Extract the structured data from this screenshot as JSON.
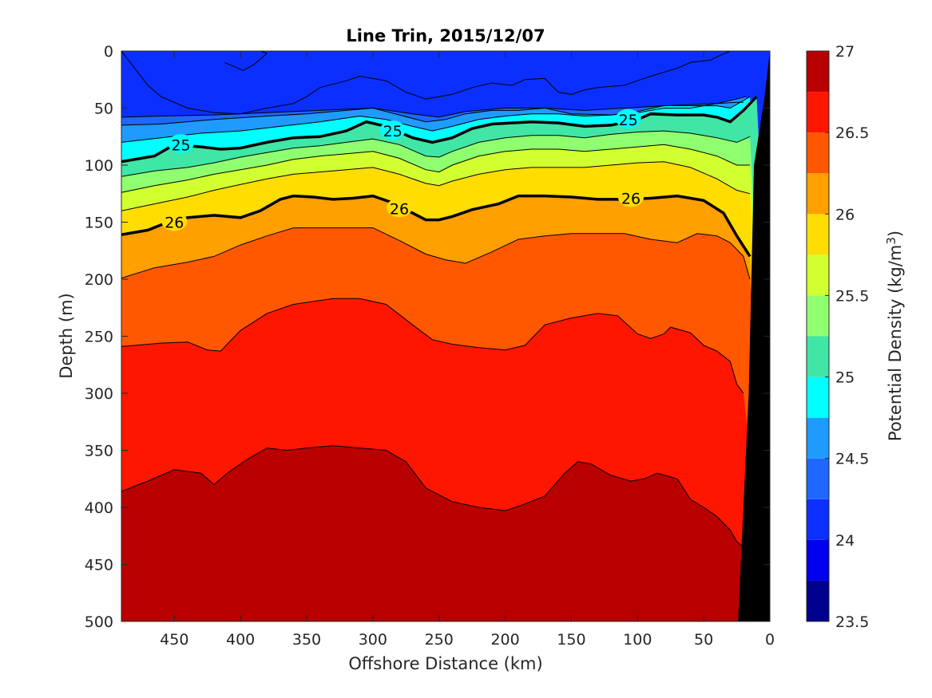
{
  "chart_data": {
    "type": "contour",
    "title": "Line Trin, 2015/12/07",
    "xlabel": "Offshore Distance (km)",
    "ylabel": "Depth (m)",
    "colorbar_label": "Potential Density (kg/m",
    "colorbar_label_sup": "3",
    "colorbar_label_end": ")",
    "xlim": [
      490,
      0
    ],
    "ylim": [
      500,
      0
    ],
    "x_ticks": [
      450,
      400,
      350,
      300,
      250,
      200,
      150,
      100,
      50,
      0
    ],
    "y_ticks": [
      0,
      50,
      100,
      150,
      200,
      250,
      300,
      350,
      400,
      450,
      500
    ],
    "colorbar_range": [
      23.5,
      27
    ],
    "colorbar_ticks": [
      23.5,
      24,
      24.5,
      25,
      25.5,
      26,
      26.5,
      27
    ],
    "contour_levels": [
      23.5,
      23.75,
      24,
      24.25,
      24.5,
      24.75,
      25,
      25.25,
      25.5,
      25.75,
      26,
      26.25,
      26.5,
      26.75
    ],
    "level_colors": [
      "#00008f",
      "#0000ef",
      "#0b2fff",
      "#1f67ff",
      "#1f9bff",
      "#00ffff",
      "#3fe6a6",
      "#8fff70",
      "#d2ff2f",
      "#ffdd00",
      "#ff9f00",
      "#ff5800",
      "#ff1600",
      "#b90000"
    ],
    "labeled_contours": [
      {
        "level": 25,
        "labels": [
          {
            "x": 445,
            "depth": 82,
            "text": "25"
          },
          {
            "x": 285,
            "depth": 70,
            "text": "25"
          },
          {
            "x": 107,
            "depth": 60,
            "text": "25"
          }
        ]
      },
      {
        "level": 26,
        "labels": [
          {
            "x": 450,
            "depth": 150,
            "text": "26"
          },
          {
            "x": 280,
            "depth": 138,
            "text": "26"
          },
          {
            "x": 105,
            "depth": 129,
            "text": "26"
          }
        ]
      }
    ],
    "isopycnals": [
      {
        "level": 24.25,
        "x": [
          490,
          460,
          420,
          380,
          340,
          300,
          270,
          250,
          230,
          200,
          170,
          140,
          110,
          80,
          60,
          40,
          25,
          20
        ],
        "depth": [
          58,
          57,
          56,
          54,
          52,
          50,
          55,
          58,
          53,
          50,
          50,
          52,
          50,
          48,
          47,
          46,
          45,
          45
        ]
      },
      {
        "level": 24.5,
        "x": [
          490,
          460,
          420,
          380,
          350,
          320,
          300,
          280,
          260,
          245,
          230,
          210,
          190,
          170,
          150,
          120,
          100,
          80,
          60,
          40,
          25,
          18
        ],
        "depth": [
          65,
          64,
          60,
          57,
          55,
          52,
          50,
          56,
          62,
          60,
          55,
          52,
          52,
          50,
          55,
          56,
          54,
          50,
          50,
          46,
          42,
          40
        ]
      },
      {
        "level": 24.75,
        "x": [
          490,
          460,
          430,
          400,
          370,
          340,
          310,
          290,
          270,
          255,
          240,
          220,
          200,
          180,
          160,
          140,
          120,
          100,
          80,
          60,
          40,
          30,
          15
        ],
        "depth": [
          80,
          76,
          72,
          70,
          66,
          62,
          57,
          60,
          66,
          70,
          66,
          60,
          57,
          55,
          55,
          57,
          56,
          53,
          48,
          48,
          48,
          50,
          40
        ]
      },
      {
        "level": 25,
        "x": [
          490,
          465,
          450,
          430,
          415,
          400,
          380,
          360,
          340,
          320,
          305,
          290,
          270,
          255,
          240,
          225,
          210,
          195,
          180,
          160,
          140,
          120,
          100,
          90,
          70,
          50,
          40,
          30,
          20,
          10
        ],
        "depth": [
          97,
          92,
          82,
          84,
          86,
          85,
          80,
          76,
          75,
          70,
          62,
          66,
          76,
          80,
          76,
          68,
          64,
          63,
          62,
          63,
          66,
          65,
          60,
          55,
          56,
          56,
          58,
          62,
          52,
          40
        ]
      },
      {
        "level": 25.25,
        "x": [
          490,
          465,
          440,
          420,
          400,
          380,
          360,
          340,
          320,
          300,
          280,
          260,
          250,
          240,
          220,
          200,
          180,
          160,
          140,
          120,
          100,
          80,
          60,
          40,
          25,
          15
        ],
        "depth": [
          110,
          105,
          102,
          98,
          93,
          89,
          85,
          83,
          80,
          77,
          82,
          92,
          93,
          88,
          80,
          76,
          74,
          74,
          76,
          73,
          71,
          70,
          72,
          76,
          80,
          75
        ]
      },
      {
        "level": 25.5,
        "x": [
          490,
          465,
          440,
          420,
          400,
          380,
          360,
          340,
          320,
          300,
          280,
          260,
          250,
          240,
          220,
          200,
          180,
          160,
          140,
          120,
          100,
          80,
          60,
          40,
          25,
          15
        ],
        "depth": [
          124,
          118,
          113,
          108,
          104,
          100,
          95,
          92,
          90,
          88,
          94,
          104,
          106,
          100,
          92,
          88,
          86,
          86,
          88,
          86,
          84,
          82,
          86,
          92,
          100,
          100
        ]
      },
      {
        "level": 25.75,
        "x": [
          490,
          465,
          440,
          420,
          400,
          380,
          360,
          340,
          320,
          300,
          280,
          260,
          250,
          240,
          220,
          200,
          180,
          160,
          140,
          120,
          100,
          80,
          60,
          40,
          25,
          15
        ],
        "depth": [
          140,
          134,
          128,
          122,
          117,
          112,
          108,
          106,
          104,
          102,
          108,
          116,
          118,
          114,
          108,
          104,
          102,
          102,
          102,
          100,
          98,
          97,
          102,
          112,
          122,
          125
        ]
      },
      {
        "level": 26,
        "x": [
          490,
          470,
          455,
          440,
          420,
          400,
          385,
          370,
          360,
          345,
          330,
          315,
          300,
          285,
          270,
          260,
          250,
          240,
          225,
          205,
          190,
          170,
          150,
          130,
          110,
          90,
          70,
          50,
          35,
          25,
          15
        ],
        "depth": [
          161,
          157,
          150,
          146,
          144,
          146,
          140,
          130,
          127,
          128,
          130,
          129,
          127,
          133,
          142,
          148,
          148,
          145,
          139,
          134,
          127,
          127,
          128,
          130,
          130,
          129,
          127,
          131,
          142,
          162,
          180
        ]
      },
      {
        "level": 26.25,
        "x": [
          490,
          465,
          440,
          420,
          400,
          380,
          360,
          340,
          320,
          300,
          280,
          260,
          245,
          230,
          210,
          190,
          170,
          150,
          130,
          110,
          90,
          70,
          55,
          40,
          30,
          20,
          15
        ],
        "depth": [
          199,
          190,
          185,
          180,
          170,
          162,
          155,
          155,
          155,
          155,
          166,
          178,
          183,
          186,
          176,
          165,
          162,
          160,
          160,
          160,
          165,
          168,
          160,
          162,
          168,
          180,
          200
        ]
      },
      {
        "level": 26.5,
        "x": [
          490,
          460,
          440,
          425,
          415,
          400,
          380,
          360,
          330,
          310,
          290,
          270,
          255,
          240,
          220,
          200,
          185,
          170,
          150,
          130,
          115,
          100,
          90,
          80,
          75,
          60,
          50,
          40,
          30,
          25,
          20
        ],
        "depth": [
          259,
          256,
          255,
          262,
          263,
          245,
          230,
          222,
          217,
          217,
          222,
          240,
          253,
          257,
          260,
          262,
          258,
          240,
          234,
          230,
          232,
          248,
          252,
          248,
          242,
          247,
          258,
          263,
          272,
          292,
          300
        ]
      },
      {
        "level": 26.75,
        "x": [
          490,
          470,
          450,
          430,
          420,
          410,
          395,
          380,
          365,
          350,
          330,
          310,
          290,
          275,
          260,
          240,
          220,
          200,
          185,
          170,
          155,
          145,
          135,
          120,
          105,
          95,
          85,
          70,
          60,
          50,
          40,
          30,
          25,
          20
        ],
        "depth": [
          386,
          377,
          367,
          370,
          380,
          370,
          358,
          348,
          350,
          348,
          346,
          348,
          350,
          360,
          383,
          395,
          400,
          403,
          397,
          390,
          370,
          360,
          362,
          372,
          377,
          375,
          370,
          375,
          393,
          400,
          408,
          420,
          430,
          435
        ]
      }
    ],
    "shallow_features": [
      {
        "level": 23.5,
        "x": [
          412,
          405,
          395,
          385,
          380,
          390,
          398,
          412
        ],
        "depth": [
          0,
          0,
          0,
          0,
          2,
          12,
          17,
          10
        ]
      },
      {
        "level": 24.0,
        "x": [
          490,
          480,
          470,
          460,
          440,
          420,
          400,
          380,
          360,
          350,
          340,
          320,
          310,
          290,
          275,
          265,
          260,
          240,
          225,
          210,
          195,
          185,
          170,
          160,
          150,
          140,
          130,
          110,
          100,
          90,
          70,
          60,
          45,
          38,
          30
        ],
        "depth": [
          0,
          15,
          30,
          40,
          50,
          54,
          55,
          50,
          46,
          40,
          32,
          26,
          22,
          26,
          36,
          40,
          42,
          38,
          32,
          28,
          30,
          25,
          24,
          36,
          38,
          34,
          32,
          30,
          26,
          22,
          15,
          10,
          8,
          4,
          0
        ]
      }
    ],
    "bathymetry_x": [
      24,
      16,
      12,
      4,
      0
    ],
    "bathymetry_depth": [
      500,
      300,
      100,
      40,
      0
    ]
  }
}
